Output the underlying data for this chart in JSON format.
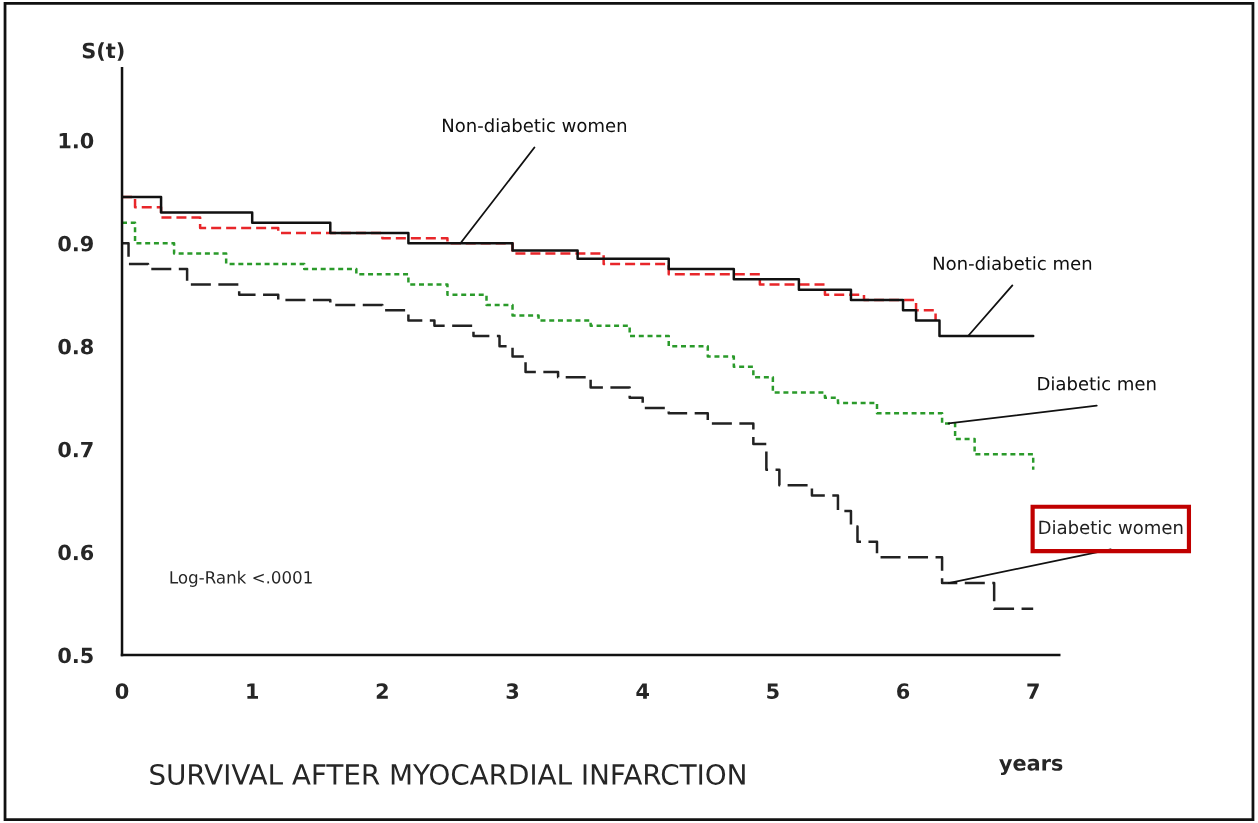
{
  "chart_data": {
    "type": "step",
    "title": "SURVIVAL AFTER MYOCARDIAL INFARCTION",
    "xlabel": "years",
    "ylabel": "S(t)",
    "xlim": [
      0,
      7.2
    ],
    "ylim": [
      0.5,
      1.07
    ],
    "xticks": [
      0,
      1,
      2,
      3,
      4,
      5,
      6,
      7
    ],
    "yticks": [
      0.5,
      0.6,
      0.7,
      0.8,
      0.9,
      {
        "value": 1.0,
        "label": "1.0"
      }
    ],
    "grid": false,
    "legend": false,
    "annotations": [
      "Log-Rank <.0001"
    ],
    "series": [
      {
        "name": "Non-diabetic women",
        "color": "#e8262a",
        "line_style": "dashed",
        "x": [
          0,
          0.1,
          0.3,
          0.6,
          1.2,
          2.0,
          2.5,
          3.0,
          3.7,
          4.2,
          4.9,
          5.4,
          5.7,
          6.1,
          6.25
        ],
        "values": [
          0.945,
          0.935,
          0.925,
          0.915,
          0.91,
          0.905,
          0.9,
          0.89,
          0.88,
          0.87,
          0.86,
          0.85,
          0.845,
          0.835,
          0.825
        ]
      },
      {
        "name": "Non-diabetic men",
        "color": "#111111",
        "line_style": "solid",
        "x": [
          0,
          0.3,
          1.0,
          1.6,
          2.2,
          3.0,
          3.5,
          4.2,
          4.7,
          5.2,
          5.6,
          6.0,
          6.1,
          6.28,
          7.0
        ],
        "values": [
          0.945,
          0.93,
          0.92,
          0.91,
          0.9,
          0.893,
          0.885,
          0.875,
          0.865,
          0.855,
          0.845,
          0.835,
          0.825,
          0.81,
          0.81
        ]
      },
      {
        "name": "Diabetic men",
        "color": "#2a9a2a",
        "line_style": "dotted",
        "x": [
          0,
          0.1,
          0.4,
          0.8,
          1.4,
          1.8,
          2.2,
          2.5,
          2.8,
          3.0,
          3.2,
          3.6,
          3.9,
          4.2,
          4.5,
          4.7,
          4.85,
          5.0,
          5.4,
          5.5,
          5.8,
          6.3,
          6.4,
          6.55,
          7.0
        ],
        "values": [
          0.92,
          0.9,
          0.89,
          0.88,
          0.875,
          0.87,
          0.86,
          0.85,
          0.84,
          0.83,
          0.825,
          0.82,
          0.81,
          0.8,
          0.79,
          0.78,
          0.77,
          0.755,
          0.75,
          0.745,
          0.735,
          0.725,
          0.71,
          0.695,
          0.68
        ]
      },
      {
        "name": "Diabetic women",
        "color": "#222222",
        "line_style": "longdash",
        "x": [
          0,
          0.05,
          0.2,
          0.5,
          0.9,
          1.2,
          1.6,
          2.0,
          2.2,
          2.4,
          2.7,
          2.9,
          3.0,
          3.1,
          3.35,
          3.6,
          3.9,
          4.0,
          4.2,
          4.5,
          4.85,
          4.95,
          5.05,
          5.3,
          5.5,
          5.6,
          5.65,
          5.8,
          6.3,
          6.7,
          7.0
        ],
        "values": [
          0.9,
          0.88,
          0.875,
          0.86,
          0.85,
          0.845,
          0.84,
          0.835,
          0.825,
          0.82,
          0.81,
          0.8,
          0.79,
          0.775,
          0.77,
          0.76,
          0.75,
          0.74,
          0.735,
          0.725,
          0.705,
          0.68,
          0.665,
          0.655,
          0.64,
          0.625,
          0.61,
          0.595,
          0.57,
          0.545,
          0.545
        ]
      }
    ]
  }
}
